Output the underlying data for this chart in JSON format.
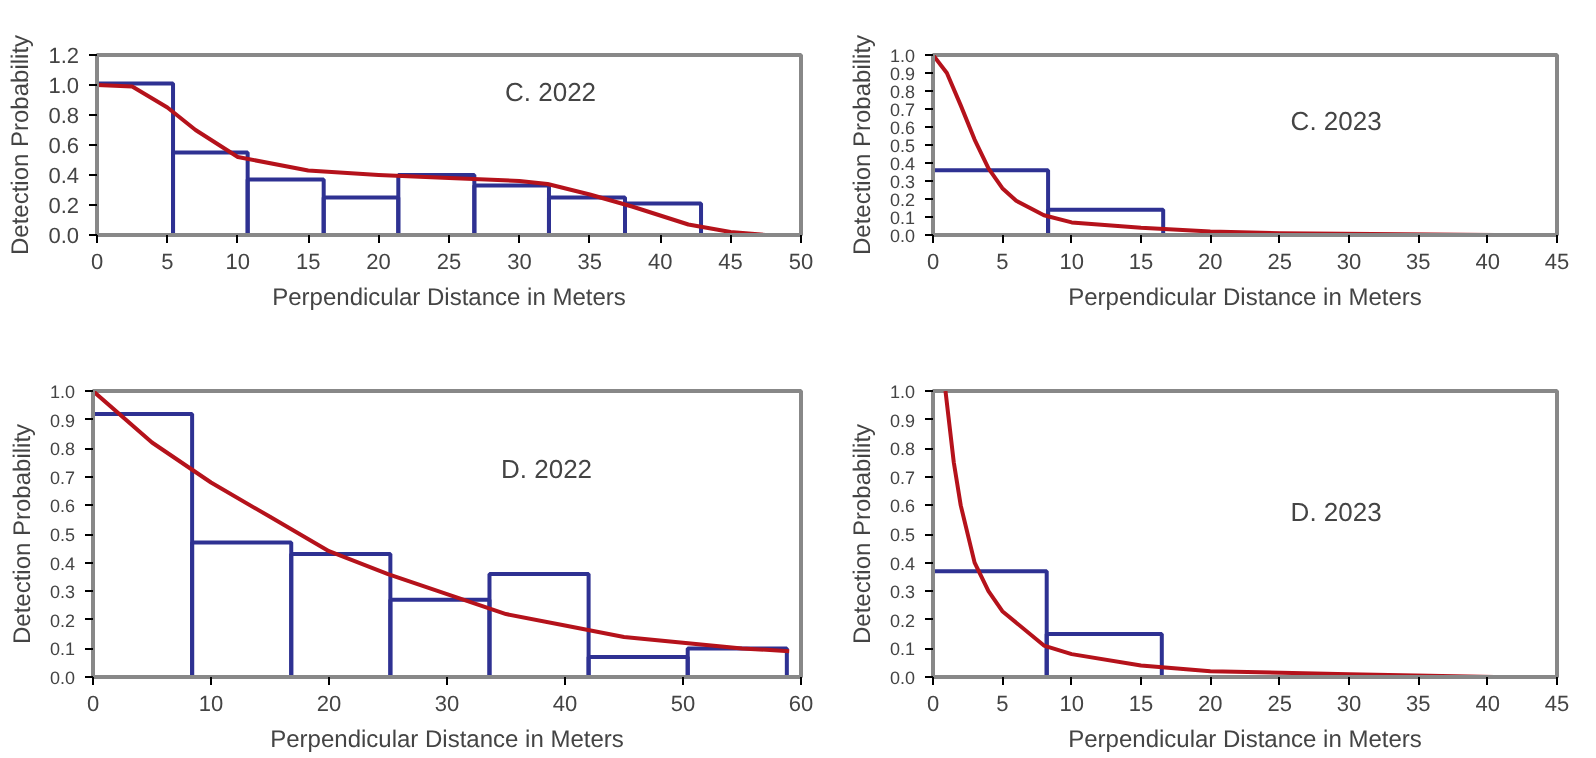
{
  "chart_data": [
    {
      "type": "histogram",
      "title": "C. 2022",
      "xlabel": "Perpendicular Distance in Meters",
      "ylabel": "Detection Probability",
      "xlim": [
        0,
        50
      ],
      "xticks": [
        0,
        5,
        10,
        15,
        20,
        25,
        30,
        35,
        40,
        45,
        50
      ],
      "ylim": [
        0,
        1.2
      ],
      "yticks": [
        {
          "value": 0,
          "label": "0.0"
        },
        {
          "value": 0.2,
          "label": "0.2"
        },
        {
          "value": 0.4,
          "label": "0.4"
        },
        {
          "value": 0.6,
          "label": "0.6"
        },
        {
          "value": 0.8,
          "label": "0.8"
        },
        {
          "value": 1,
          "label": "1.0"
        },
        {
          "value": 1.2,
          "label": "1.2"
        }
      ],
      "series": [
        {
          "type": "histogram",
          "color": "#2e3192",
          "bins": [
            0,
            5.4,
            10.7,
            16.1,
            21.4,
            26.8,
            32.1,
            37.5,
            42.9
          ],
          "values": [
            1.01,
            0.55,
            0.37,
            0.25,
            0.4,
            0.33,
            0.25,
            0.21
          ]
        },
        {
          "type": "line",
          "color": "#b5121b",
          "x": [
            0,
            2.5,
            5,
            7,
            10,
            15,
            20,
            25,
            30,
            32,
            35,
            38,
            42,
            45,
            47.5
          ],
          "values": [
            1.0,
            0.99,
            0.85,
            0.7,
            0.52,
            0.43,
            0.4,
            0.38,
            0.36,
            0.34,
            0.27,
            0.19,
            0.07,
            0.02,
            0.0
          ]
        }
      ]
    },
    {
      "type": "histogram",
      "title": "C. 2023",
      "xlabel": "Perpendicular Distance in Meters",
      "ylabel": "Detection Probability",
      "xlim": [
        0,
        45
      ],
      "xticks": [
        0,
        5,
        10,
        15,
        20,
        25,
        30,
        35,
        40,
        45
      ],
      "ylim": [
        0,
        1
      ],
      "yticks": [
        {
          "value": 0,
          "label": "0.0"
        },
        0.1,
        0.2,
        0.3,
        0.4,
        0.5,
        0.6,
        0.7,
        0.8,
        0.9,
        {
          "value": 1,
          "label": "1.0"
        }
      ],
      "series": [
        {
          "type": "histogram",
          "color": "#2e3192",
          "bins": [
            0,
            8.3,
            16.6
          ],
          "values": [
            0.36,
            0.14
          ]
        },
        {
          "type": "line",
          "color": "#b5121b",
          "x": [
            0,
            1,
            2,
            3,
            4,
            5,
            6,
            8,
            10,
            15,
            20,
            25,
            40.5
          ],
          "values": [
            1.0,
            0.9,
            0.72,
            0.53,
            0.37,
            0.26,
            0.19,
            0.11,
            0.07,
            0.04,
            0.02,
            0.01,
            0.0
          ]
        }
      ]
    },
    {
      "type": "histogram",
      "title": "D. 2022",
      "xlabel": "Perpendicular Distance in Meters",
      "ylabel": "Detection Probability",
      "xlim": [
        0,
        60
      ],
      "xticks": [
        0,
        10,
        20,
        30,
        40,
        50,
        60
      ],
      "ylim": [
        0,
        1
      ],
      "yticks": [
        {
          "value": 0,
          "label": "0.0"
        },
        0.1,
        0.2,
        0.3,
        0.4,
        0.5,
        0.6,
        0.7,
        0.8,
        0.9,
        {
          "value": 1,
          "label": "1.0"
        }
      ],
      "series": [
        {
          "type": "histogram",
          "color": "#2e3192",
          "bins": [
            0,
            8.4,
            16.8,
            25.2,
            33.6,
            42,
            50.4,
            58.8
          ],
          "values": [
            0.92,
            0.47,
            0.43,
            0.27,
            0.36,
            0.07,
            0.1
          ]
        },
        {
          "type": "line",
          "color": "#b5121b",
          "x": [
            0,
            5,
            10,
            15,
            20,
            25,
            30,
            35,
            40,
            45,
            50,
            55,
            59
          ],
          "values": [
            1.0,
            0.82,
            0.68,
            0.56,
            0.44,
            0.36,
            0.29,
            0.22,
            0.18,
            0.14,
            0.12,
            0.1,
            0.09
          ]
        }
      ]
    },
    {
      "type": "histogram",
      "title": "D. 2023",
      "xlabel": "Perpendicular Distance in Meters",
      "ylabel": "Detection Probability",
      "xlim": [
        0,
        45
      ],
      "xticks": [
        0,
        5,
        10,
        15,
        20,
        25,
        30,
        35,
        40,
        45
      ],
      "ylim": [
        0,
        1
      ],
      "yticks": [
        {
          "value": 0,
          "label": "0.0"
        },
        0.1,
        0.2,
        0.3,
        0.4,
        0.5,
        0.6,
        0.7,
        0.8,
        0.9,
        {
          "value": 1,
          "label": "1.0"
        }
      ],
      "series": [
        {
          "type": "histogram",
          "color": "#2e3192",
          "bins": [
            0,
            8.2,
            16.5
          ],
          "values": [
            0.37,
            0.15
          ]
        },
        {
          "type": "line",
          "color": "#b5121b",
          "x": [
            0.9,
            1.5,
            2,
            3,
            4,
            5,
            8,
            10,
            15,
            20,
            30,
            40.5
          ],
          "values": [
            1.0,
            0.75,
            0.6,
            0.4,
            0.3,
            0.23,
            0.11,
            0.08,
            0.04,
            0.02,
            0.01,
            0.0
          ]
        }
      ]
    }
  ]
}
